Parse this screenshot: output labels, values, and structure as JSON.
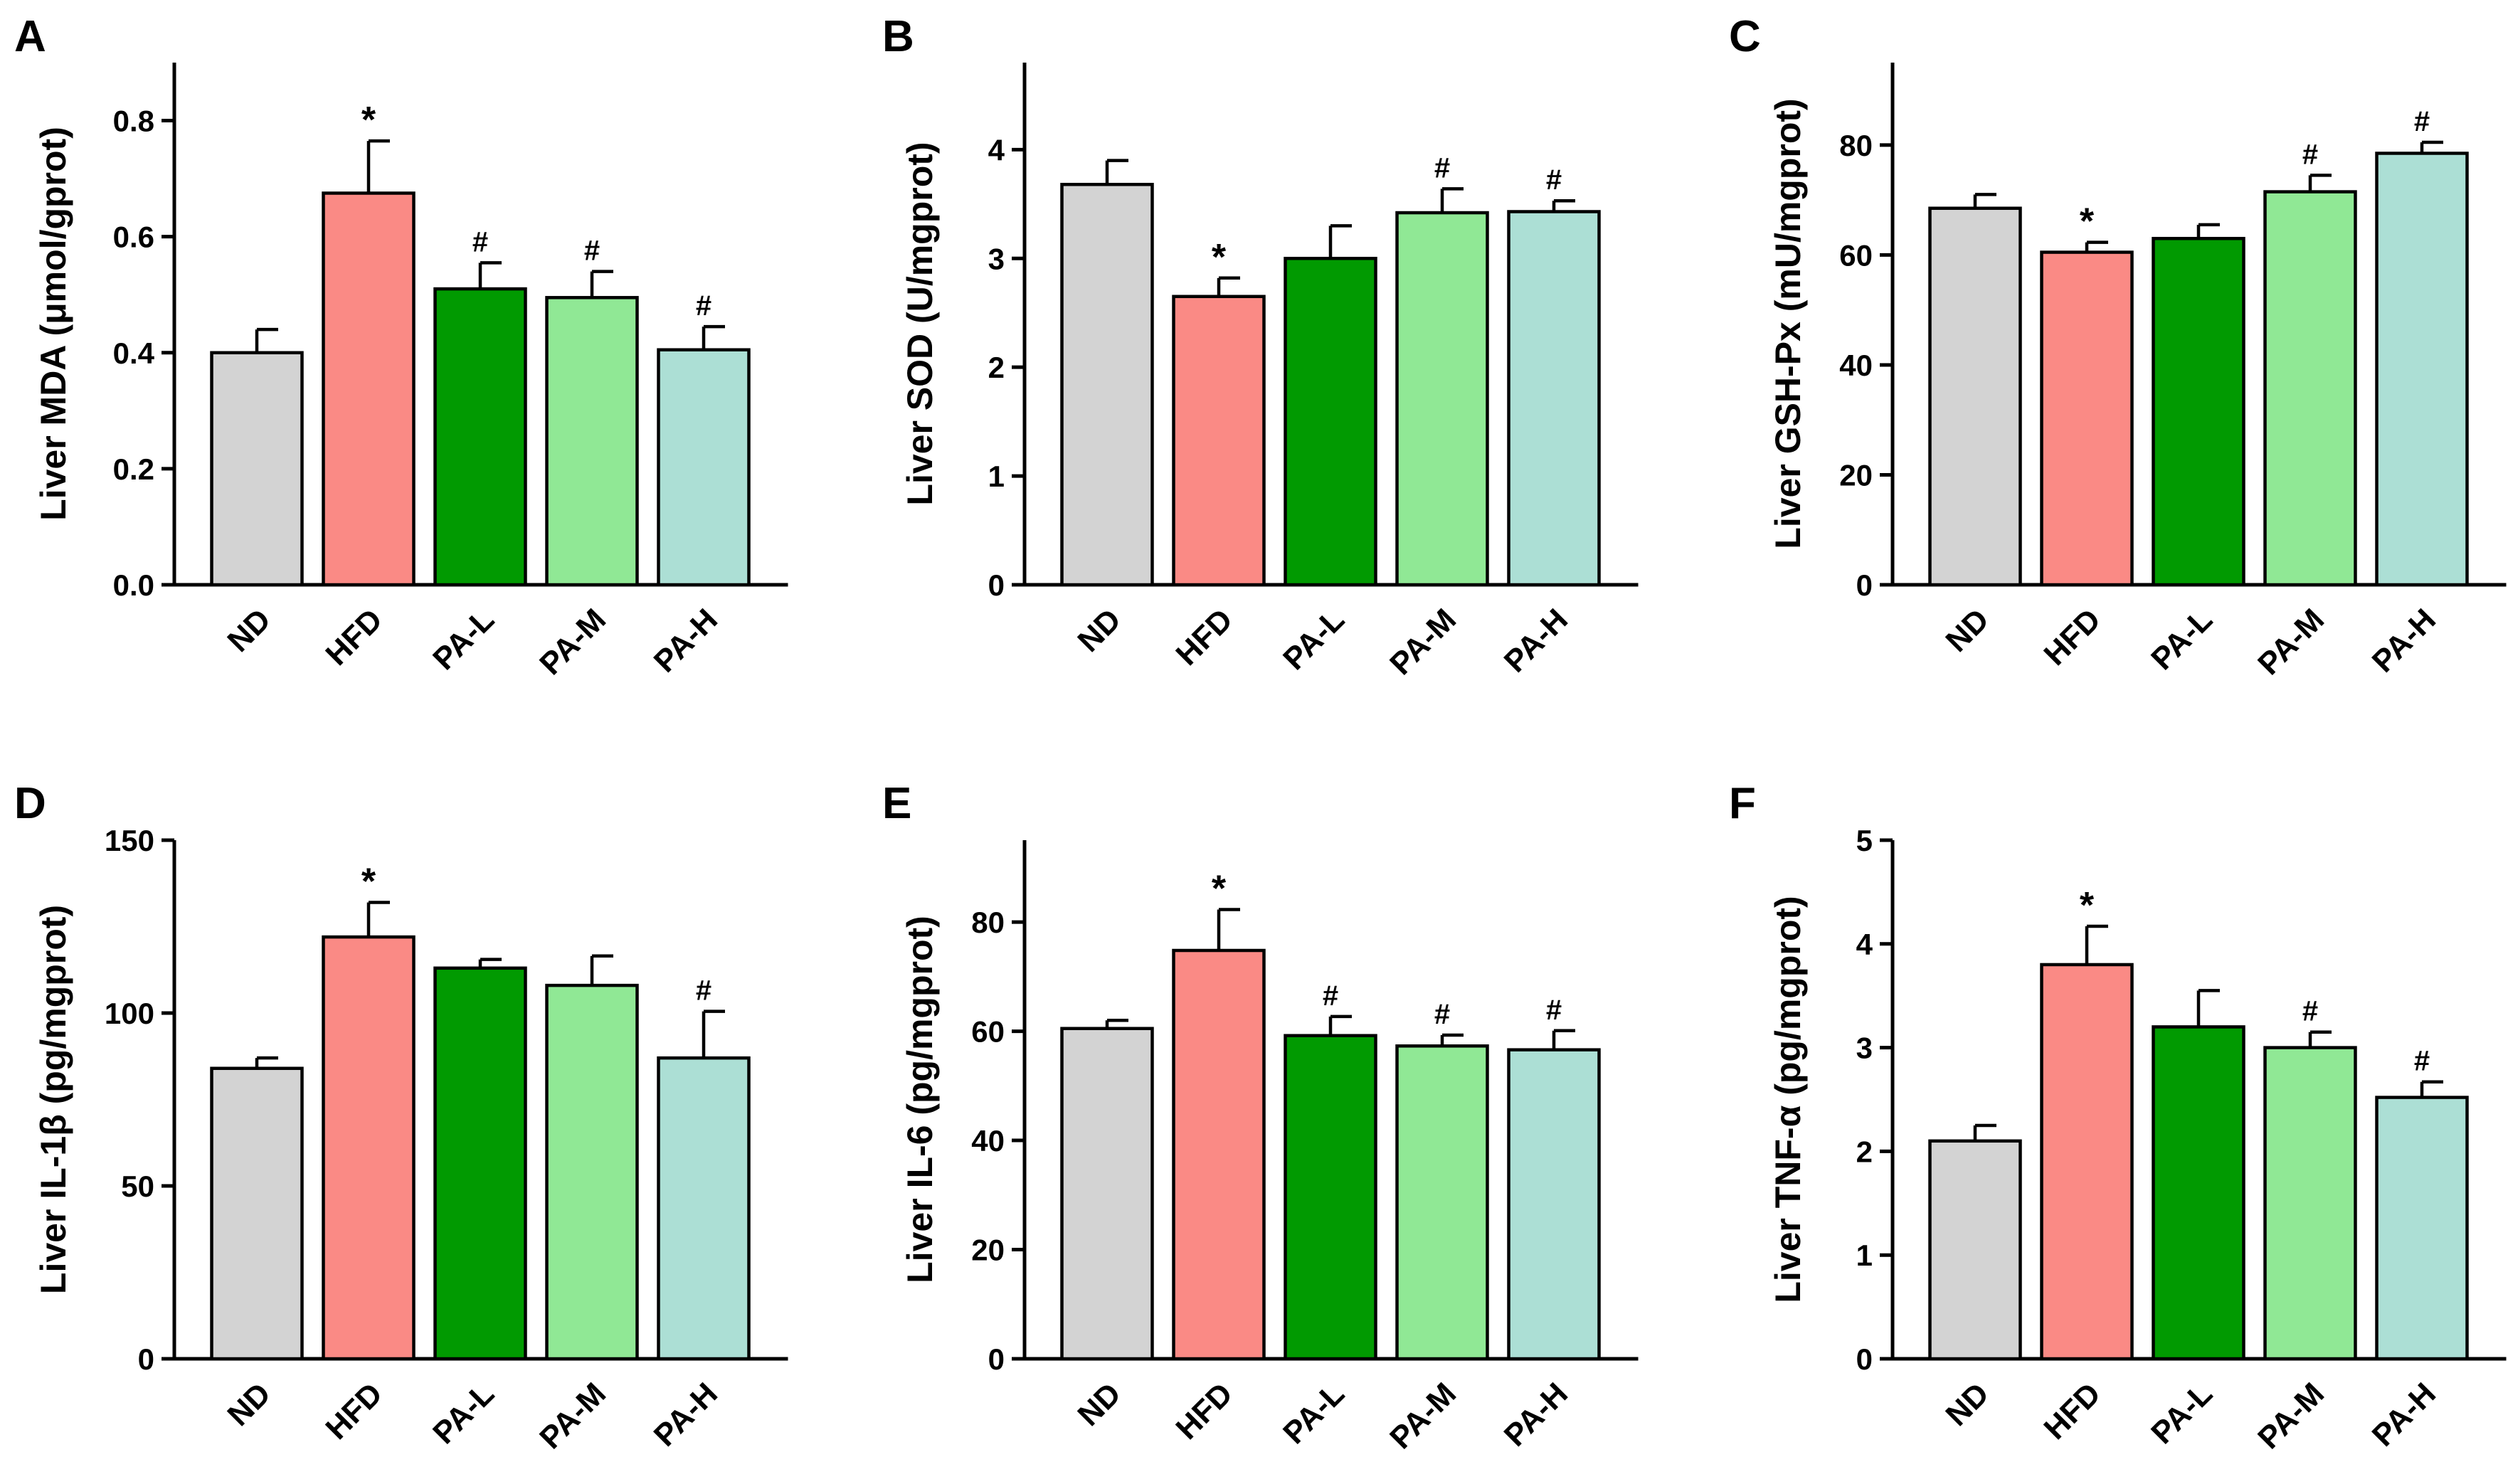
{
  "colors": {
    "ND": "#d3d3d3",
    "HFD": "#fa8a85",
    "PA-L": "#019a01",
    "PA-M": "#90e895",
    "PA-H": "#acdfd5",
    "axis": "#000000"
  },
  "chart_data": [
    {
      "type": "bar",
      "panel_label": "A",
      "ylabel": "Liver MDA (μmol/gprot)",
      "categories": [
        "ND",
        "HFD",
        "PA-L",
        "PA-M",
        "PA-H"
      ],
      "values": [
        0.4,
        0.675,
        0.51,
        0.495,
        0.405
      ],
      "errors": [
        0.04,
        0.09,
        0.045,
        0.045,
        0.04
      ],
      "significance": [
        "",
        "*",
        "#",
        "#",
        "#"
      ],
      "ylim": [
        0,
        0.9
      ],
      "yticks": [
        0,
        0.2,
        0.4,
        0.6,
        0.8
      ],
      "ytick_labels": [
        "0.0",
        "0.2",
        "0.4",
        "0.6",
        "0.8"
      ]
    },
    {
      "type": "bar",
      "panel_label": "B",
      "ylabel": "Liver SOD (U/mgprot)",
      "categories": [
        "ND",
        "HFD",
        "PA-L",
        "PA-M",
        "PA-H"
      ],
      "values": [
        3.68,
        2.65,
        3.0,
        3.42,
        3.43
      ],
      "errors": [
        0.22,
        0.17,
        0.3,
        0.22,
        0.1
      ],
      "significance": [
        "",
        "*",
        "",
        "#",
        "#"
      ],
      "ylim": [
        0,
        4.8
      ],
      "yticks": [
        0,
        1,
        2,
        3,
        4
      ],
      "ytick_labels": [
        "0",
        "1",
        "2",
        "3",
        "4"
      ]
    },
    {
      "type": "bar",
      "panel_label": "C",
      "ylabel": "Liver GSH-Px (mU/mgprot)",
      "categories": [
        "ND",
        "HFD",
        "PA-L",
        "PA-M",
        "PA-H"
      ],
      "values": [
        68.5,
        60.5,
        63.0,
        71.5,
        78.5
      ],
      "errors": [
        2.5,
        1.8,
        2.5,
        3.0,
        2.0
      ],
      "significance": [
        "",
        "*",
        "",
        "#",
        "#"
      ],
      "ylim": [
        0,
        95
      ],
      "yticks": [
        0,
        20,
        40,
        60,
        80
      ],
      "ytick_labels": [
        "0",
        "20",
        "40",
        "60",
        "80"
      ]
    },
    {
      "type": "bar",
      "panel_label": "D",
      "ylabel": "Liver IL-1β (pg/mgprot)",
      "categories": [
        "ND",
        "HFD",
        "PA-L",
        "PA-M",
        "PA-H"
      ],
      "values": [
        84,
        122,
        113,
        108,
        87
      ],
      "errors": [
        3,
        10,
        2.5,
        8.5,
        13.5
      ],
      "significance": [
        "",
        "*",
        "",
        "",
        "#"
      ],
      "ylim": [
        0,
        150
      ],
      "yticks": [
        0,
        50,
        100,
        150
      ],
      "ytick_labels": [
        "0",
        "50",
        "100",
        "150"
      ]
    },
    {
      "type": "bar",
      "panel_label": "E",
      "ylabel": "Liver IL-6 (pg/mgprot)",
      "categories": [
        "ND",
        "HFD",
        "PA-L",
        "PA-M",
        "PA-H"
      ],
      "values": [
        60.5,
        74.8,
        59.2,
        57.3,
        56.6
      ],
      "errors": [
        1.5,
        7.5,
        3.5,
        2.0,
        3.5
      ],
      "significance": [
        "",
        "*",
        "#",
        "#",
        "#"
      ],
      "ylim": [
        0,
        95
      ],
      "yticks": [
        0,
        20,
        40,
        60,
        80
      ],
      "ytick_labels": [
        "0",
        "20",
        "40",
        "60",
        "80"
      ]
    },
    {
      "type": "bar",
      "panel_label": "F",
      "ylabel": "Liver TNF-α (pg/mgprot)",
      "categories": [
        "ND",
        "HFD",
        "PA-L",
        "PA-M",
        "PA-H"
      ],
      "values": [
        2.1,
        3.8,
        3.2,
        3.0,
        2.52
      ],
      "errors": [
        0.15,
        0.37,
        0.35,
        0.15,
        0.15
      ],
      "significance": [
        "",
        "*",
        "",
        "#",
        "#"
      ],
      "ylim": [
        0,
        5
      ],
      "yticks": [
        0,
        1,
        2,
        3,
        4,
        5
      ],
      "ytick_labels": [
        "0",
        "1",
        "2",
        "3",
        "4",
        "5"
      ]
    }
  ]
}
